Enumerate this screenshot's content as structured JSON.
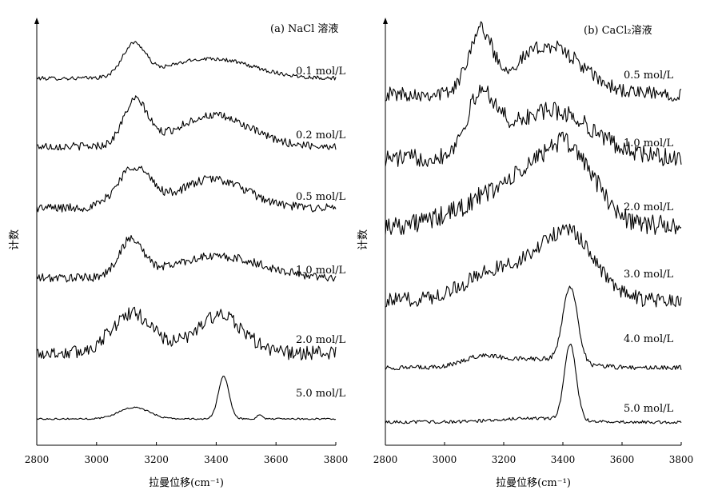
{
  "chart_data": [
    {
      "type": "line",
      "title": "(a) NaCl 溶液",
      "xlabel": "拉曼位移(cm⁻¹)",
      "ylabel": "计数",
      "xlim": [
        2800,
        3800
      ],
      "xticks": [
        "2800",
        "3000",
        "3200",
        "3400",
        "3600",
        "3800"
      ],
      "grid": false,
      "series": [
        {
          "name": "0.1 mol/L",
          "noise": 0.06,
          "peaks": [
            [
              3125,
              1.0,
              38
            ],
            [
              3380,
              0.62,
              140
            ]
          ],
          "baseline": 0.05
        },
        {
          "name": "0.2 mol/L",
          "noise": 0.09,
          "peaks": [
            [
              3130,
              1.0,
              40
            ],
            [
              3390,
              0.7,
              120
            ]
          ],
          "baseline": 0.0
        },
        {
          "name": "0.5 mol/L",
          "noise": 0.11,
          "peaks": [
            [
              3125,
              1.0,
              55
            ],
            [
              3390,
              0.72,
              110
            ]
          ],
          "baseline": 0.1
        },
        {
          "name": "1.0 mol/L",
          "noise": 0.12,
          "peaks": [
            [
              3115,
              1.0,
              40
            ],
            [
              3400,
              0.6,
              150
            ]
          ],
          "baseline": 0.05
        },
        {
          "name": "2.0 mol/L",
          "noise": 0.16,
          "peaks": [
            [
              3120,
              0.9,
              70
            ],
            [
              3410,
              0.85,
              80
            ]
          ],
          "baseline": 0.15
        },
        {
          "name": "5.0 mol/L",
          "noise": 0.02,
          "peaks": [
            [
              3125,
              0.3,
              50
            ],
            [
              3425,
              1.1,
              18
            ],
            [
              3545,
              0.12,
              8
            ]
          ],
          "baseline": 0.0
        }
      ]
    },
    {
      "type": "line",
      "title": "(b) CaCl₂溶液",
      "xlabel": "拉曼位移(cm⁻¹)",
      "ylabel": "计数",
      "xlim": [
        2800,
        3800
      ],
      "xticks": [
        "2800",
        "3000",
        "3200",
        "3400",
        "3600",
        "3800"
      ],
      "grid": false,
      "series": [
        {
          "name": "0.5 mol/L",
          "noise": 0.12,
          "peaks": [
            [
              3120,
              1.0,
              40
            ],
            [
              3350,
              0.8,
              110
            ]
          ],
          "baseline": 0.1
        },
        {
          "name": "1.0 mol/L",
          "noise": 0.16,
          "peaks": [
            [
              3125,
              1.0,
              50
            ],
            [
              3360,
              0.85,
              140
            ]
          ],
          "baseline": 0.1
        },
        {
          "name": "2.0 mol/L",
          "noise": 0.17,
          "peaks": [
            [
              3250,
              0.7,
              150
            ],
            [
              3420,
              1.0,
              90
            ]
          ],
          "baseline": 0.1
        },
        {
          "name": "3.0 mol/L",
          "noise": 0.12,
          "peaks": [
            [
              3200,
              0.5,
              120
            ],
            [
              3420,
              1.0,
              90
            ]
          ],
          "baseline": 0.05
        },
        {
          "name": "4.0 mol/L",
          "noise": 0.03,
          "peaks": [
            [
              3120,
              0.12,
              60
            ],
            [
              3425,
              1.0,
              25
            ],
            [
              3300,
              0.12,
              120
            ]
          ],
          "baseline": 0.0
        },
        {
          "name": "5.0 mol/L",
          "noise": 0.02,
          "peaks": [
            [
              3425,
              1.0,
              20
            ],
            [
              3300,
              0.05,
              120
            ]
          ],
          "baseline": 0.0
        }
      ]
    }
  ]
}
